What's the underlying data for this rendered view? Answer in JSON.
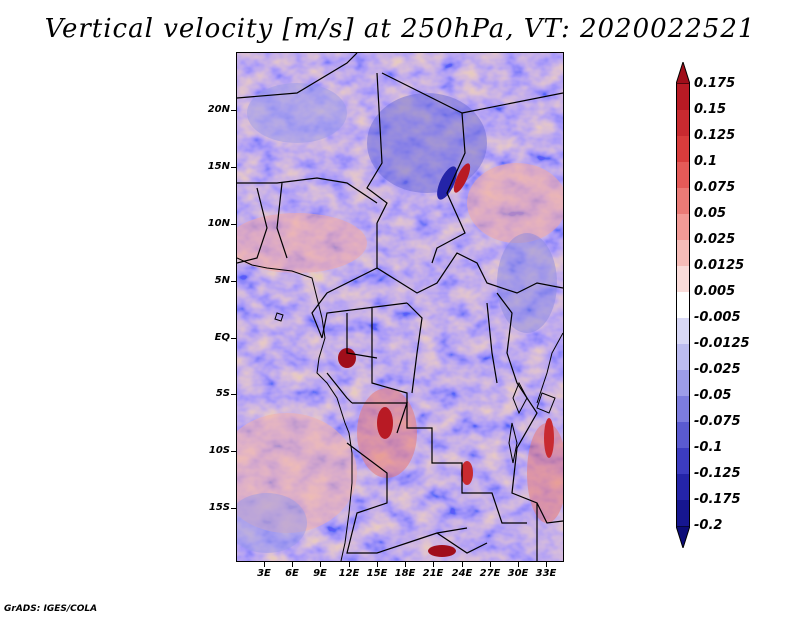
{
  "title": "Vertical velocity [m/s] at 250hPa, VT: 2020022521",
  "credit": "GrADS: IGES/COLA",
  "map": {
    "lat_labels": [
      "20N",
      "15N",
      "10N",
      "5N",
      "EQ",
      "5S",
      "10S",
      "15S"
    ],
    "lon_labels": [
      "3E",
      "6E",
      "9E",
      "12E",
      "15E",
      "18E",
      "21E",
      "24E",
      "27E",
      "30E",
      "33E"
    ],
    "lat_range": [
      -20,
      25
    ],
    "lon_range": [
      0,
      35
    ]
  },
  "colorbar": {
    "labels": [
      "0.175",
      "0.15",
      "0.125",
      "0.1",
      "0.075",
      "0.05",
      "0.025",
      "0.0125",
      "0.005",
      "-0.005",
      "-0.0125",
      "-0.025",
      "-0.05",
      "-0.075",
      "-0.1",
      "-0.125",
      "-0.175",
      "-0.2"
    ],
    "colors": [
      "#a00e1a",
      "#b81a24",
      "#c82a30",
      "#d83c3c",
      "#e45a58",
      "#ea7a76",
      "#f29a96",
      "#f6bcb8",
      "#fadcda",
      "#ffffff",
      "#d8d8f6",
      "#bcbcf0",
      "#9c9ce8",
      "#7c7cde",
      "#5a5ad0",
      "#3c3cc0",
      "#2424a8",
      "#161690",
      "#0c0c78"
    ]
  }
}
